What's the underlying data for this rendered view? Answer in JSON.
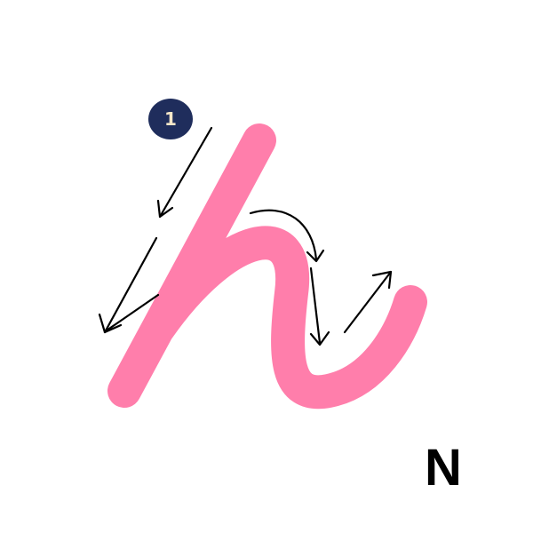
{
  "step_badge": {
    "number": "1"
  },
  "letter_label": "N",
  "colors": {
    "stroke": "#ff7eab",
    "badge": "#1f2d5c",
    "badge_text": "#f6e7c9",
    "arrows": "#000000",
    "background": "#ffffff"
  },
  "icons": [
    "down-left-arrow-icon",
    "curved-arrow-icon",
    "down-arrow-icon",
    "up-right-arrow-icon"
  ]
}
